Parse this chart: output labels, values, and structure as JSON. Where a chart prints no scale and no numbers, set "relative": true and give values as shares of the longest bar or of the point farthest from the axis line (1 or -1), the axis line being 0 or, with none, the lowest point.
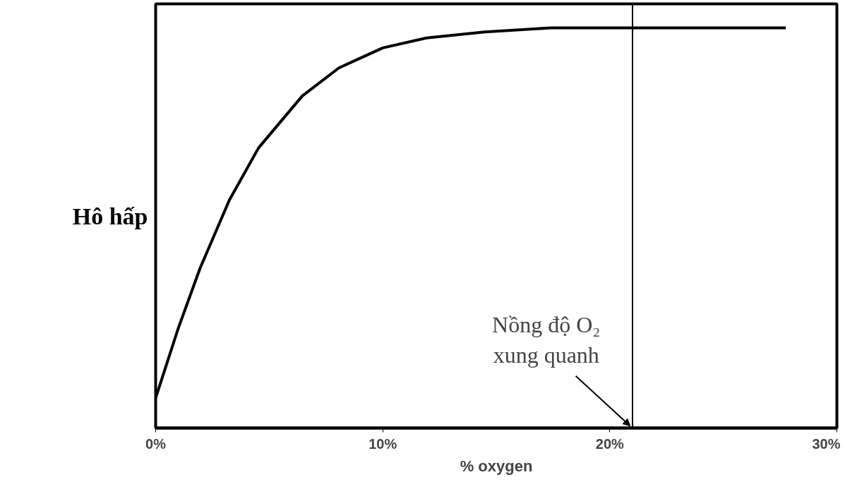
{
  "chart_data": {
    "type": "line",
    "relative": true,
    "xlabel": "% oxygen",
    "ylabel": "Hô hấp",
    "x": [
      0,
      1.0,
      1.96,
      3.25,
      4.53,
      6.46,
      8.07,
      10.0,
      11.93,
      14.5,
      17.4,
      21.58,
      27.75
    ],
    "series": [
      {
        "color": "#000000",
        "values": [
          0.075,
          0.25,
          0.4,
          0.57,
          0.7,
          0.83,
          0.9,
          0.95,
          0.975,
          0.99,
          1.0,
          1.0,
          1.0
        ]
      }
    ],
    "xlim": [
      0,
      30
    ],
    "xticks": [
      {
        "value": 0,
        "label": "0%"
      },
      {
        "value": 10,
        "label": "10%"
      },
      {
        "value": 20,
        "label": "20%"
      },
      {
        "value": 30,
        "label": "30%"
      }
    ],
    "ref_lines": [
      {
        "axis": "x",
        "value": 21,
        "color": "#000000"
      }
    ],
    "annotations": [
      {
        "text": "Nồng độ O₂\nxung quanh",
        "x": 21,
        "y": 0
      }
    ],
    "grid": false,
    "marker": "none",
    "line_style": "solid"
  }
}
